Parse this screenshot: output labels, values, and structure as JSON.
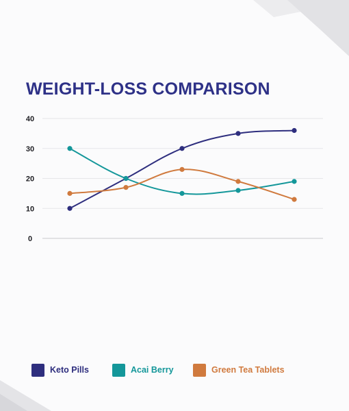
{
  "title": "WEIGHT-LOSS COMPARISON",
  "colors": {
    "keto": "#2e2e7e",
    "acai": "#14979a",
    "green_tea": "#d07a3e",
    "title": "#2e3187"
  },
  "chart_data": {
    "type": "line",
    "title": "WEIGHT-LOSS COMPARISON",
    "xlabel": "",
    "ylabel": "",
    "categories": [
      "",
      "",
      "",
      "",
      ""
    ],
    "ylim": [
      0,
      40
    ],
    "yticks": [
      0,
      10,
      20,
      30,
      40
    ],
    "grid": true,
    "smooth": true,
    "legend_position": "bottom",
    "series": [
      {
        "name": "Keto Pills",
        "color": "#2e2e7e",
        "values": [
          10,
          20,
          30,
          35,
          36
        ]
      },
      {
        "name": "Acai Berry",
        "color": "#14979a",
        "values": [
          30,
          20,
          15,
          16,
          19
        ]
      },
      {
        "name": "Green Tea Tablets",
        "color": "#d07a3e",
        "values": [
          15,
          17,
          23,
          19,
          13
        ]
      }
    ]
  }
}
